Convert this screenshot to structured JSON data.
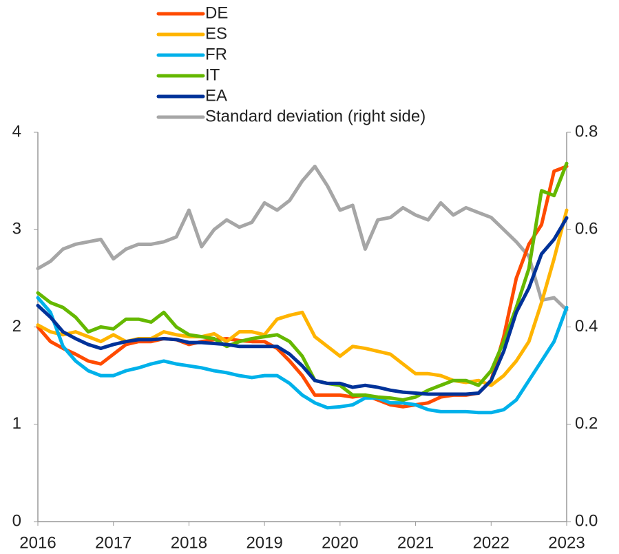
{
  "chart_data": {
    "type": "line",
    "x": [
      2016,
      2016.167,
      2016.333,
      2016.5,
      2016.667,
      2016.833,
      2017,
      2017.167,
      2017.333,
      2017.5,
      2017.667,
      2017.833,
      2018,
      2018.167,
      2018.333,
      2018.5,
      2018.667,
      2018.833,
      2019,
      2019.167,
      2019.333,
      2019.5,
      2019.667,
      2019.833,
      2020,
      2020.167,
      2020.333,
      2020.5,
      2020.667,
      2020.833,
      2021,
      2021.167,
      2021.333,
      2021.5,
      2021.667,
      2021.833,
      2022,
      2022.167,
      2022.333,
      2022.5,
      2022.667,
      2022.833,
      2023
    ],
    "series": [
      {
        "name": "DE",
        "color": "#ff4b00",
        "values": [
          2.0,
          1.85,
          1.78,
          1.72,
          1.65,
          1.62,
          1.72,
          1.82,
          1.85,
          1.85,
          1.88,
          1.87,
          1.82,
          1.85,
          1.87,
          1.88,
          1.86,
          1.85,
          1.85,
          1.78,
          1.65,
          1.5,
          1.3,
          1.3,
          1.3,
          1.28,
          1.3,
          1.25,
          1.2,
          1.18,
          1.2,
          1.22,
          1.28,
          1.3,
          1.3,
          1.32,
          1.45,
          1.9,
          2.5,
          2.85,
          3.05,
          3.6,
          3.65
        ]
      },
      {
        "name": "ES",
        "color": "#ffb400",
        "values": [
          2.02,
          1.95,
          1.92,
          1.95,
          1.9,
          1.85,
          1.92,
          1.85,
          1.88,
          1.88,
          1.95,
          1.92,
          1.9,
          1.9,
          1.93,
          1.85,
          1.95,
          1.95,
          1.92,
          2.08,
          2.12,
          2.15,
          1.9,
          1.8,
          1.7,
          1.8,
          1.78,
          1.75,
          1.72,
          1.62,
          1.52,
          1.52,
          1.5,
          1.45,
          1.43,
          1.45,
          1.4,
          1.5,
          1.65,
          1.85,
          2.25,
          2.7,
          3.2
        ]
      },
      {
        "name": "FR",
        "color": "#00b1ea",
        "values": [
          2.3,
          2.15,
          1.8,
          1.65,
          1.55,
          1.5,
          1.5,
          1.55,
          1.58,
          1.62,
          1.65,
          1.62,
          1.6,
          1.58,
          1.55,
          1.53,
          1.5,
          1.48,
          1.5,
          1.5,
          1.42,
          1.3,
          1.22,
          1.17,
          1.18,
          1.2,
          1.27,
          1.27,
          1.22,
          1.22,
          1.2,
          1.15,
          1.13,
          1.13,
          1.13,
          1.12,
          1.12,
          1.15,
          1.25,
          1.45,
          1.65,
          1.85,
          2.2
        ]
      },
      {
        "name": "IT",
        "color": "#65b800",
        "values": [
          2.35,
          2.25,
          2.2,
          2.1,
          1.95,
          2.0,
          1.98,
          2.08,
          2.08,
          2.05,
          2.15,
          2.0,
          1.92,
          1.9,
          1.88,
          1.8,
          1.85,
          1.88,
          1.9,
          1.92,
          1.85,
          1.7,
          1.45,
          1.42,
          1.4,
          1.3,
          1.3,
          1.28,
          1.27,
          1.25,
          1.28,
          1.35,
          1.4,
          1.45,
          1.45,
          1.4,
          1.55,
          1.85,
          2.2,
          2.6,
          3.4,
          3.35,
          3.68
        ]
      },
      {
        "name": "EA",
        "color": "#003299",
        "values": [
          2.22,
          2.1,
          1.95,
          1.88,
          1.82,
          1.78,
          1.82,
          1.85,
          1.87,
          1.87,
          1.88,
          1.87,
          1.84,
          1.84,
          1.83,
          1.82,
          1.8,
          1.8,
          1.8,
          1.8,
          1.72,
          1.6,
          1.45,
          1.42,
          1.42,
          1.38,
          1.4,
          1.38,
          1.35,
          1.33,
          1.32,
          1.31,
          1.31,
          1.31,
          1.31,
          1.32,
          1.45,
          1.75,
          2.15,
          2.4,
          2.75,
          2.9,
          3.12
        ]
      },
      {
        "name": "Standard deviation (right side)",
        "color": "#a6a6a6",
        "axis": "y2",
        "values": [
          0.52,
          0.535,
          0.56,
          0.57,
          0.575,
          0.58,
          0.54,
          0.56,
          0.57,
          0.57,
          0.575,
          0.585,
          0.64,
          0.565,
          0.6,
          0.62,
          0.605,
          0.615,
          0.655,
          0.64,
          0.66,
          0.7,
          0.73,
          0.69,
          0.64,
          0.65,
          0.56,
          0.62,
          0.625,
          0.645,
          0.63,
          0.62,
          0.655,
          0.63,
          0.645,
          0.635,
          0.625,
          0.6,
          0.575,
          0.545,
          0.455,
          0.46,
          0.435
        ]
      }
    ],
    "xlim": [
      2016,
      2023
    ],
    "xticks": [
      2016,
      2017,
      2018,
      2019,
      2020,
      2021,
      2022,
      2023
    ],
    "ylim": [
      0,
      4
    ],
    "yticks": [
      0,
      1,
      2,
      3,
      4
    ],
    "y2lim": [
      0,
      0.8
    ],
    "y2ticks": [
      {
        "value": 0,
        "label": "0.0"
      },
      0.2,
      0.4,
      0.6,
      0.8
    ],
    "grid": false,
    "legend": "top-left"
  }
}
